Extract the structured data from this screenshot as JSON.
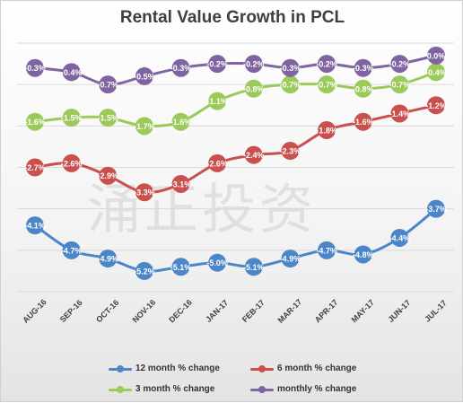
{
  "chart_data": {
    "type": "line",
    "title": "Rental Value Growth in PCL",
    "watermark": "涌正投资",
    "categories": [
      "AUG-16",
      "SEP-16",
      "OCT-16",
      "NOV-16",
      "DEC-16",
      "JAN-17",
      "FEB-17",
      "MAR-17",
      "APR-17",
      "MAY-17",
      "JUN-17",
      "JUL-17"
    ],
    "ylim": [
      -5.7,
      0.3
    ],
    "grid": true,
    "legend_position": "bottom",
    "series": [
      {
        "name": "12 month % change",
        "color": "#4a86c8",
        "values": [
          -4.1,
          -4.7,
          -4.9,
          -5.2,
          -5.1,
          -5.0,
          -5.1,
          -4.9,
          -4.7,
          -4.8,
          -4.4,
          -3.7
        ],
        "labels": [
          "-4.1%",
          "-4.7%",
          "-4.9%",
          "-5.2%",
          "-5.1%",
          "-5.0%",
          "-5.1%",
          "-4.9%",
          "-4.7%",
          "-4.8%",
          "-4.4%",
          "-3.7%"
        ]
      },
      {
        "name": "6 month % change",
        "color": "#c9504d",
        "values": [
          -2.7,
          -2.6,
          -2.9,
          -3.3,
          -3.1,
          -2.6,
          -2.4,
          -2.3,
          -1.8,
          -1.6,
          -1.4,
          -1.2
        ],
        "labels": [
          "-2.7%",
          "-2.6%",
          "-2.9%",
          "-3.3%",
          "-3.1%",
          "-2.6%",
          "-2.4%",
          "-2.3%",
          "-1.8%",
          "-1.6%",
          "-1.4%",
          "-1.2%"
        ]
      },
      {
        "name": "3 month % change",
        "color": "#9bc95a",
        "values": [
          -1.6,
          -1.5,
          -1.5,
          -1.7,
          -1.6,
          -1.1,
          -0.8,
          -0.7,
          -0.7,
          -0.8,
          -0.7,
          -0.4
        ],
        "labels": [
          "-1.6%",
          "-1.5%",
          "-1.5%",
          "-1.7%",
          "-1.6%",
          "-1.1%",
          "-0.8%",
          "-0.7%",
          "-0.7%",
          "-0.8%",
          "-0.7%",
          "-0.4%"
        ]
      },
      {
        "name": "monthly % change",
        "color": "#8064a2",
        "values": [
          -0.3,
          -0.4,
          -0.7,
          -0.5,
          -0.3,
          -0.2,
          -0.2,
          -0.3,
          -0.2,
          -0.3,
          -0.2,
          0.0
        ],
        "labels": [
          "-0.3%",
          "-0.4%",
          "-0.7%",
          "-0.5%",
          "-0.3%",
          "-0.2%",
          "-0.2%",
          "-0.3%",
          "-0.2%",
          "-0.3%",
          "-0.2%",
          "0.0%"
        ]
      }
    ]
  }
}
